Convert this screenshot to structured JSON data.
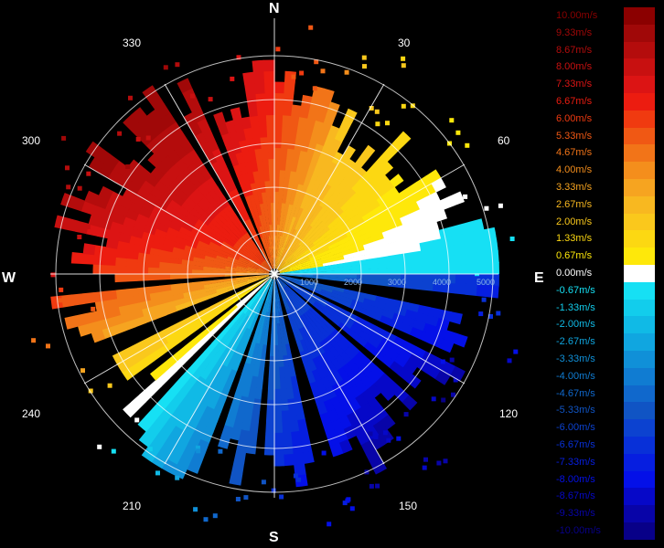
{
  "compass": {
    "n": "N",
    "e": "E",
    "s": "S",
    "w": "W"
  },
  "azimuth_labels": [
    "30",
    "60",
    "120",
    "150",
    "210",
    "240",
    "300",
    "330"
  ],
  "range_labels": [
    "1000",
    "2000",
    "3000",
    "4000",
    "5000"
  ],
  "legend": {
    "entries": [
      {
        "label": "10.00m/s",
        "color": "#8b0000"
      },
      {
        "label": "9.33m/s",
        "color": "#a00808"
      },
      {
        "label": "8.67m/s",
        "color": "#b40c0c"
      },
      {
        "label": "8.00m/s",
        "color": "#c81010"
      },
      {
        "label": "7.33m/s",
        "color": "#dc1414"
      },
      {
        "label": "6.67m/s",
        "color": "#ec1c10"
      },
      {
        "label": "6.00m/s",
        "color": "#f03a10"
      },
      {
        "label": "5.33m/s",
        "color": "#f05814"
      },
      {
        "label": "4.67m/s",
        "color": "#f27418"
      },
      {
        "label": "4.00m/s",
        "color": "#f48e1c"
      },
      {
        "label": "3.33m/s",
        "color": "#f6a420"
      },
      {
        "label": "2.67m/s",
        "color": "#f8b820"
      },
      {
        "label": "2.00m/s",
        "color": "#fac81c"
      },
      {
        "label": "1.33m/s",
        "color": "#fcd812"
      },
      {
        "label": "0.67m/s",
        "color": "#fee80a"
      },
      {
        "label": "0.00m/s",
        "color": "#ffffff"
      },
      {
        "label": "-0.67m/s",
        "color": "#16e0f4"
      },
      {
        "label": "-1.33m/s",
        "color": "#12cdec"
      },
      {
        "label": "-2.00m/s",
        "color": "#10bae6"
      },
      {
        "label": "-2.67m/s",
        "color": "#10a6e0"
      },
      {
        "label": "-3.33m/s",
        "color": "#1090d8"
      },
      {
        "label": "-4.00m/s",
        "color": "#107cd2"
      },
      {
        "label": "-4.67m/s",
        "color": "#1068cc"
      },
      {
        "label": "-5.33m/s",
        "color": "#1054c4"
      },
      {
        "label": "-6.00m/s",
        "color": "#0c42d0"
      },
      {
        "label": "-6.67m/s",
        "color": "#0830d8"
      },
      {
        "label": "-7.33m/s",
        "color": "#061ee0"
      },
      {
        "label": "-8.00m/s",
        "color": "#0410e8"
      },
      {
        "label": "-8.67m/s",
        "color": "#0608c8"
      },
      {
        "label": "-9.33m/s",
        "color": "#0804a8"
      },
      {
        "label": "-10.00m/s",
        "color": "#080088"
      }
    ]
  }
}
